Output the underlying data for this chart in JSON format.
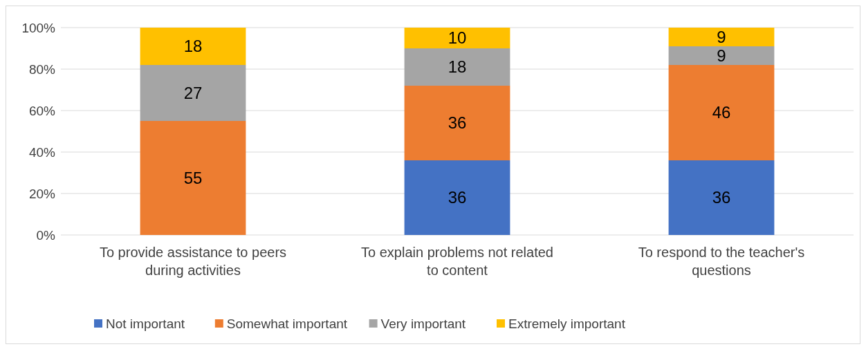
{
  "chart_data": {
    "type": "bar",
    "stacked": true,
    "categories": [
      "To provide assistance to peers during activities",
      "To explain problems not related to content",
      "To respond to the teacher's questions"
    ],
    "series": [
      {
        "name": "Not important",
        "color": "#4472c4",
        "values": [
          0,
          36,
          36
        ],
        "value_labels": [
          null,
          "36",
          "36"
        ]
      },
      {
        "name": "Somewhat important",
        "color": "#ed7d31",
        "values": [
          55,
          36,
          46
        ],
        "value_labels": [
          "55",
          "36",
          "46"
        ]
      },
      {
        "name": "Very important",
        "color": "#a5a5a5",
        "values": [
          27,
          18,
          9
        ],
        "value_labels": [
          "27",
          "18",
          "9"
        ]
      },
      {
        "name": "Extremely important",
        "color": "#ffc000",
        "values": [
          18,
          10,
          9
        ],
        "value_labels": [
          "18",
          "10",
          "9"
        ]
      }
    ],
    "ylim": [
      0,
      100
    ],
    "yticks": [
      {
        "value": 0,
        "label": "0%"
      },
      {
        "value": 20,
        "label": "20%"
      },
      {
        "value": 40,
        "label": "40%"
      },
      {
        "value": 60,
        "label": "60%"
      },
      {
        "value": 80,
        "label": "80%"
      },
      {
        "value": 100,
        "label": "100%"
      }
    ],
    "grid": "y",
    "legend": "bottom"
  }
}
